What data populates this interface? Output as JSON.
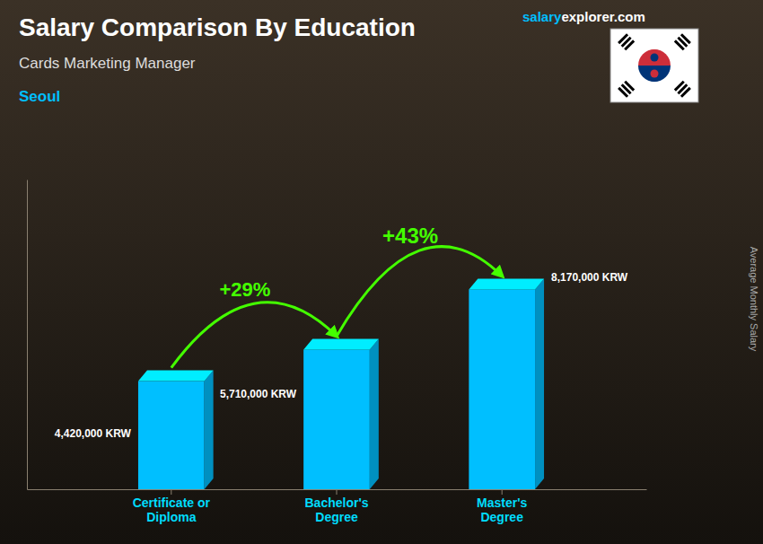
{
  "chart_data": {
    "type": "bar",
    "title": "Salary Comparison By Education",
    "subtitle": "Cards Marketing Manager",
    "ylabel": "Average Monthly Salary",
    "annotations": [
      "Seoul",
      "salary",
      "explorer.com",
      "+29%",
      "+43%"
    ],
    "categories": [
      "Certificate or\nDiploma",
      "Bachelor's\nDegree",
      "Master's\nDegree"
    ],
    "values": [
      4420000,
      5710000,
      8170000
    ],
    "value_labels": [
      "4,420,000 KRW",
      "5,710,000 KRW",
      "8,170,000 KRW"
    ],
    "data_labels": true,
    "color": "#00BFFF",
    "ylim": [
      0,
      12663500
    ],
    "tick_labels": "x",
    "grid": false
  }
}
